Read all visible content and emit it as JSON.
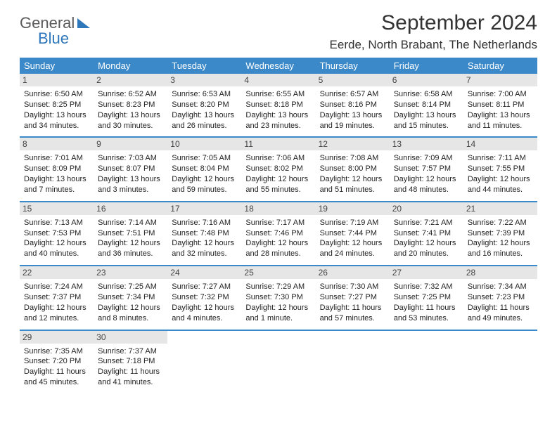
{
  "brand": {
    "word1": "General",
    "word2": "Blue"
  },
  "title": "September 2024",
  "location": "Eerde, North Brabant, The Netherlands",
  "colors": {
    "header_bg": "#3b89c9",
    "row_border": "#3b89c9",
    "daynum_bg": "#e6e6e6"
  },
  "weekdays": [
    "Sunday",
    "Monday",
    "Tuesday",
    "Wednesday",
    "Thursday",
    "Friday",
    "Saturday"
  ],
  "weeks": [
    [
      {
        "n": "1",
        "sr": "6:50 AM",
        "ss": "8:25 PM",
        "dl": "13 hours and 34 minutes."
      },
      {
        "n": "2",
        "sr": "6:52 AM",
        "ss": "8:23 PM",
        "dl": "13 hours and 30 minutes."
      },
      {
        "n": "3",
        "sr": "6:53 AM",
        "ss": "8:20 PM",
        "dl": "13 hours and 26 minutes."
      },
      {
        "n": "4",
        "sr": "6:55 AM",
        "ss": "8:18 PM",
        "dl": "13 hours and 23 minutes."
      },
      {
        "n": "5",
        "sr": "6:57 AM",
        "ss": "8:16 PM",
        "dl": "13 hours and 19 minutes."
      },
      {
        "n": "6",
        "sr": "6:58 AM",
        "ss": "8:14 PM",
        "dl": "13 hours and 15 minutes."
      },
      {
        "n": "7",
        "sr": "7:00 AM",
        "ss": "8:11 PM",
        "dl": "13 hours and 11 minutes."
      }
    ],
    [
      {
        "n": "8",
        "sr": "7:01 AM",
        "ss": "8:09 PM",
        "dl": "13 hours and 7 minutes."
      },
      {
        "n": "9",
        "sr": "7:03 AM",
        "ss": "8:07 PM",
        "dl": "13 hours and 3 minutes."
      },
      {
        "n": "10",
        "sr": "7:05 AM",
        "ss": "8:04 PM",
        "dl": "12 hours and 59 minutes."
      },
      {
        "n": "11",
        "sr": "7:06 AM",
        "ss": "8:02 PM",
        "dl": "12 hours and 55 minutes."
      },
      {
        "n": "12",
        "sr": "7:08 AM",
        "ss": "8:00 PM",
        "dl": "12 hours and 51 minutes."
      },
      {
        "n": "13",
        "sr": "7:09 AM",
        "ss": "7:57 PM",
        "dl": "12 hours and 48 minutes."
      },
      {
        "n": "14",
        "sr": "7:11 AM",
        "ss": "7:55 PM",
        "dl": "12 hours and 44 minutes."
      }
    ],
    [
      {
        "n": "15",
        "sr": "7:13 AM",
        "ss": "7:53 PM",
        "dl": "12 hours and 40 minutes."
      },
      {
        "n": "16",
        "sr": "7:14 AM",
        "ss": "7:51 PM",
        "dl": "12 hours and 36 minutes."
      },
      {
        "n": "17",
        "sr": "7:16 AM",
        "ss": "7:48 PM",
        "dl": "12 hours and 32 minutes."
      },
      {
        "n": "18",
        "sr": "7:17 AM",
        "ss": "7:46 PM",
        "dl": "12 hours and 28 minutes."
      },
      {
        "n": "19",
        "sr": "7:19 AM",
        "ss": "7:44 PM",
        "dl": "12 hours and 24 minutes."
      },
      {
        "n": "20",
        "sr": "7:21 AM",
        "ss": "7:41 PM",
        "dl": "12 hours and 20 minutes."
      },
      {
        "n": "21",
        "sr": "7:22 AM",
        "ss": "7:39 PM",
        "dl": "12 hours and 16 minutes."
      }
    ],
    [
      {
        "n": "22",
        "sr": "7:24 AM",
        "ss": "7:37 PM",
        "dl": "12 hours and 12 minutes."
      },
      {
        "n": "23",
        "sr": "7:25 AM",
        "ss": "7:34 PM",
        "dl": "12 hours and 8 minutes."
      },
      {
        "n": "24",
        "sr": "7:27 AM",
        "ss": "7:32 PM",
        "dl": "12 hours and 4 minutes."
      },
      {
        "n": "25",
        "sr": "7:29 AM",
        "ss": "7:30 PM",
        "dl": "12 hours and 1 minute."
      },
      {
        "n": "26",
        "sr": "7:30 AM",
        "ss": "7:27 PM",
        "dl": "11 hours and 57 minutes."
      },
      {
        "n": "27",
        "sr": "7:32 AM",
        "ss": "7:25 PM",
        "dl": "11 hours and 53 minutes."
      },
      {
        "n": "28",
        "sr": "7:34 AM",
        "ss": "7:23 PM",
        "dl": "11 hours and 49 minutes."
      }
    ],
    [
      {
        "n": "29",
        "sr": "7:35 AM",
        "ss": "7:20 PM",
        "dl": "11 hours and 45 minutes."
      },
      {
        "n": "30",
        "sr": "7:37 AM",
        "ss": "7:18 PM",
        "dl": "11 hours and 41 minutes."
      },
      null,
      null,
      null,
      null,
      null
    ]
  ],
  "labels": {
    "sunrise": "Sunrise: ",
    "sunset": "Sunset: ",
    "daylight": "Daylight: "
  }
}
